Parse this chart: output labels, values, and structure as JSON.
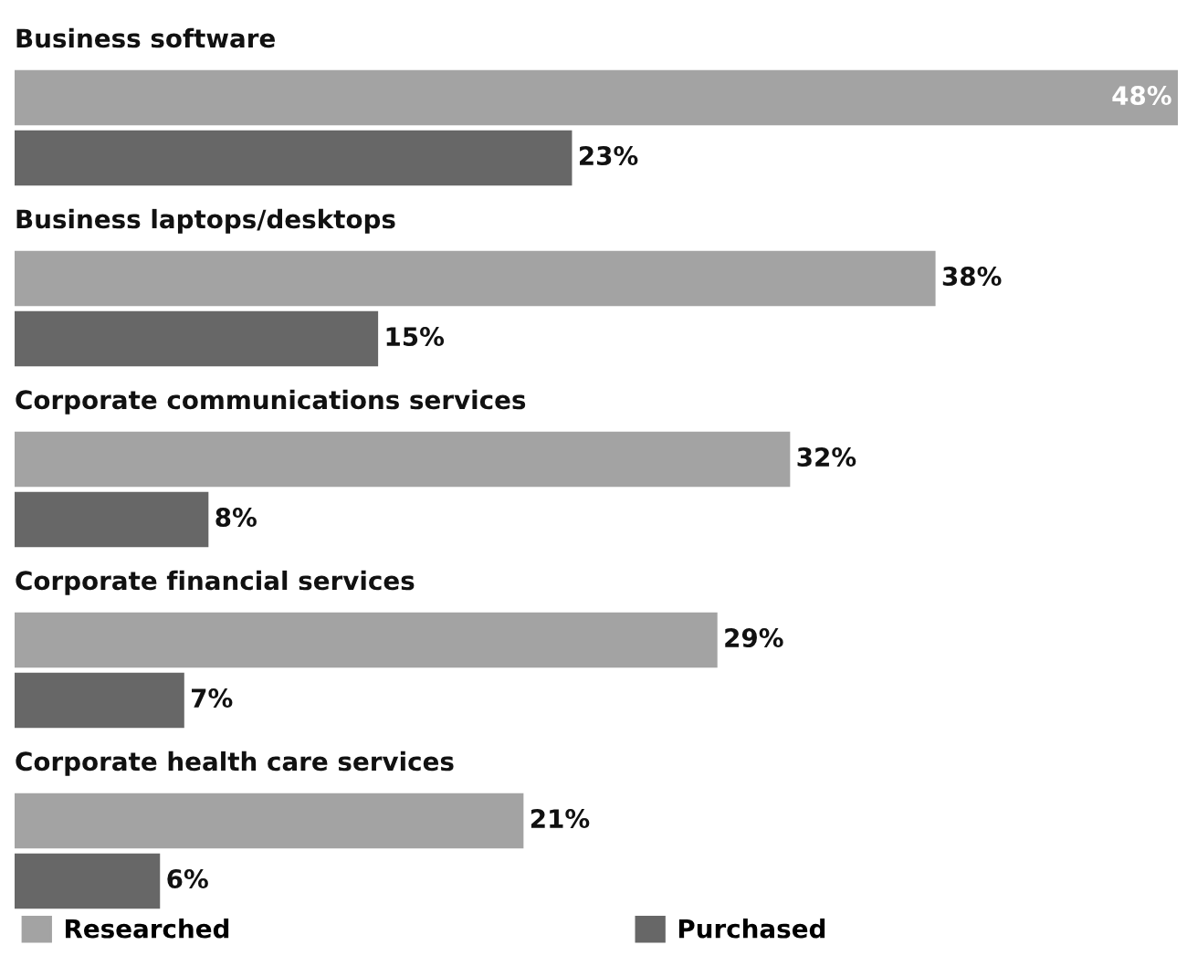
{
  "chart_data": {
    "type": "bar",
    "orientation": "horizontal",
    "categories": [
      "Business software",
      "Business laptops/desktops",
      "Corporate communications services",
      "Corporate financial services",
      "Corporate health care services"
    ],
    "series": [
      {
        "name": "Researched",
        "color": "#a3a3a3",
        "values": [
          48,
          38,
          32,
          29,
          21
        ],
        "value_labels": [
          "48%",
          "38%",
          "32%",
          "29%",
          "21%"
        ]
      },
      {
        "name": "Purchased",
        "color": "#676767",
        "values": [
          23,
          15,
          8,
          7,
          6
        ],
        "value_labels": [
          "23%",
          "15%",
          "8%",
          "7%",
          "6%"
        ]
      }
    ],
    "legend": "bottom"
  }
}
